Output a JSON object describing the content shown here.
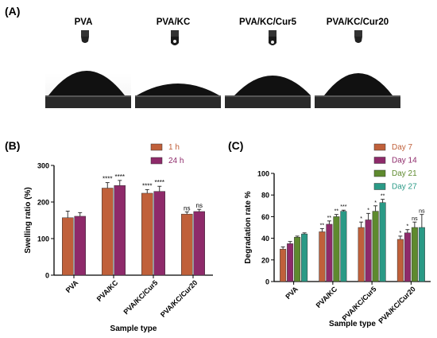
{
  "panels": {
    "a_label": "(A)",
    "b_label": "(B)",
    "c_label": "(C)"
  },
  "contact_angle": {
    "samples": [
      "PVA",
      "PVA/KC",
      "PVA/KC/Cur5",
      "PVA/KC/Cur20"
    ]
  },
  "colors": {
    "day7": "#c0603a",
    "day14": "#8e2a6a",
    "day21": "#5e8a2e",
    "day27": "#2a9a86",
    "h1": "#c0603a",
    "h24": "#8e2a6a"
  },
  "chart_data": [
    {
      "type": "bar",
      "panel": "B",
      "categories": [
        "PVA",
        "PVA/KC",
        "PVA/KC/Cur5",
        "PVA/KC/Cur20"
      ],
      "series": [
        {
          "name": "1 h",
          "values": [
            157,
            238,
            224,
            167
          ],
          "errors": [
            18,
            15,
            10,
            6
          ],
          "sig": [
            "",
            "****",
            "****",
            "ns"
          ]
        },
        {
          "name": "24 h",
          "values": [
            161,
            245,
            229,
            174
          ],
          "errors": [
            10,
            14,
            14,
            6
          ],
          "sig": [
            "",
            "****",
            "****",
            "ns"
          ]
        }
      ],
      "xlabel": "Sample type",
      "ylabel": "Swelling ratio (%)",
      "ylim": [
        0,
        300
      ],
      "yticks": [
        0,
        100,
        200,
        300
      ],
      "legend": "top-right",
      "grid": false
    },
    {
      "type": "bar",
      "panel": "C",
      "categories": [
        "PVA",
        "PVA/KC",
        "PVA/KC/Cur5",
        "PVA/KC/Cur20"
      ],
      "series": [
        {
          "name": "Day 7",
          "values": [
            30,
            46,
            50,
            39
          ],
          "errors": [
            2,
            3,
            5,
            3
          ],
          "sig": [
            "",
            "**",
            "*",
            "*"
          ]
        },
        {
          "name": "Day 14",
          "values": [
            35,
            53,
            57,
            45
          ],
          "errors": [
            2,
            3,
            6,
            3
          ],
          "sig": [
            "",
            "**",
            "*",
            "*"
          ]
        },
        {
          "name": "Day 21",
          "values": [
            41,
            60,
            65,
            50
          ],
          "errors": [
            1,
            2,
            5,
            5
          ],
          "sig": [
            "",
            "**",
            "*",
            "ns"
          ]
        },
        {
          "name": "Day 27",
          "values": [
            44,
            65,
            73,
            50
          ],
          "errors": [
            1,
            1,
            3,
            12
          ],
          "sig": [
            "",
            "***",
            "**",
            "ns"
          ]
        }
      ],
      "xlabel": "Sample type",
      "ylabel": "Degradation rate %",
      "ylim": [
        0,
        100
      ],
      "yticks": [
        0,
        20,
        40,
        60,
        80,
        100
      ],
      "legend": "top-right",
      "grid": false
    }
  ]
}
